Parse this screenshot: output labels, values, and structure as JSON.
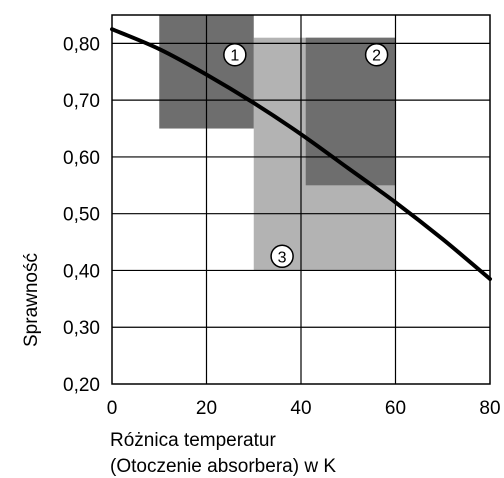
{
  "chart_data": {
    "type": "line",
    "title": "",
    "xlabel_lines": [
      "Różnica temperatur",
      "(Otoczenie absorbera) w K"
    ],
    "ylabel": "Sprawność",
    "xlim": [
      0,
      80
    ],
    "ylim": [
      0.2,
      0.85
    ],
    "x_ticks": [
      0,
      20,
      40,
      60,
      80
    ],
    "x_tick_labels": [
      "0",
      "20",
      "40",
      "60",
      "80"
    ],
    "y_ticks": [
      0.2,
      0.3,
      0.4,
      0.5,
      0.6,
      0.7,
      0.8
    ],
    "y_tick_labels": [
      "0,20",
      "0,30",
      "0,40",
      "0,50",
      "0,60",
      "0,70",
      "0,80"
    ],
    "grid": true,
    "regions": [
      {
        "label": "3",
        "x": [
          30,
          60
        ],
        "y": [
          0.4,
          0.81
        ],
        "color": "#b3b3b3",
        "label_pos": [
          36,
          0.425
        ]
      },
      {
        "label": "1",
        "x": [
          10,
          30
        ],
        "y": [
          0.65,
          0.85
        ],
        "color": "#6e6e6e",
        "label_pos": [
          26,
          0.78
        ]
      },
      {
        "label": "2",
        "x": [
          41,
          60
        ],
        "y": [
          0.55,
          0.81
        ],
        "color": "#6e6e6e",
        "label_pos": [
          56,
          0.78
        ]
      }
    ],
    "series": [
      {
        "x": [
          0,
          10,
          20,
          30,
          40,
          50,
          60,
          70,
          80
        ],
        "y": [
          0.825,
          0.79,
          0.745,
          0.695,
          0.64,
          0.58,
          0.52,
          0.455,
          0.385
        ],
        "color": "#000000"
      }
    ]
  }
}
